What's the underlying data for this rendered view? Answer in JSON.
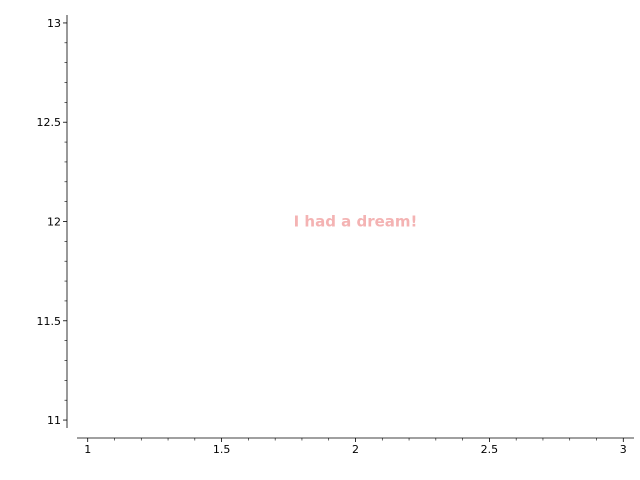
{
  "chart_data": {
    "type": "scatter",
    "title": "",
    "xlabel": "",
    "ylabel": "",
    "xlim": [
      0.96,
      3.04
    ],
    "ylim": [
      10.96,
      13.04
    ],
    "x_ticks": [
      1,
      1.5,
      2,
      2.5,
      3
    ],
    "x_tick_labels": [
      "1",
      "1.5",
      "2",
      "2.5",
      "3"
    ],
    "y_ticks": [
      11,
      11.5,
      12,
      12.5,
      13
    ],
    "y_tick_labels": [
      "11",
      "11.5",
      "12",
      "12.5",
      "13"
    ],
    "x_minor_step": 0.1,
    "y_minor_step": 0.1,
    "grid": false,
    "series": [],
    "annotations": [
      {
        "text": "I had a dream!",
        "x": 2,
        "y": 12,
        "color": "#f4b3b3"
      }
    ]
  }
}
